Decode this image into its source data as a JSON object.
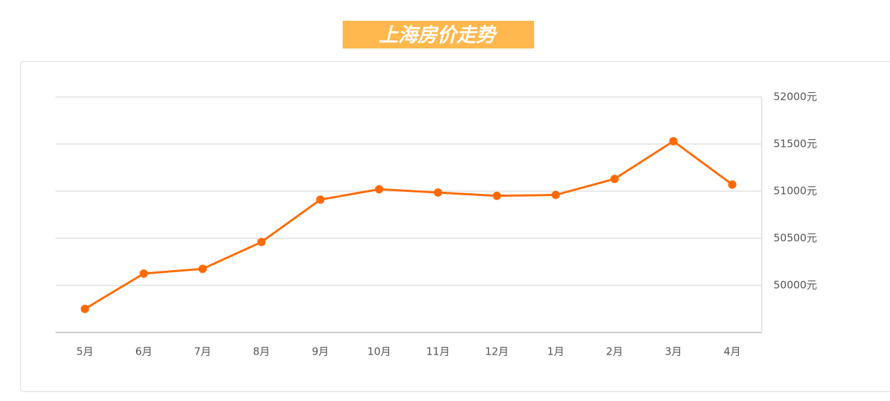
{
  "chart_data": {
    "type": "line",
    "title": "上海房价走势",
    "categories": [
      "5月",
      "6月",
      "7月",
      "8月",
      "9月",
      "10月",
      "11月",
      "12月",
      "1月",
      "2月",
      "3月",
      "4月"
    ],
    "series": [
      {
        "name": "上海房价",
        "color": "#ff6a00",
        "values": [
          49750,
          50125,
          50175,
          50460,
          50910,
          51020,
          50985,
          50950,
          50960,
          51130,
          51530,
          51070
        ]
      }
    ],
    "ylim": [
      49500,
      52000
    ],
    "yticks": [
      {
        "value": 50000,
        "label": "50000元"
      },
      {
        "value": 50500,
        "label": "50500元"
      },
      {
        "value": 51000,
        "label": "51000元"
      },
      {
        "value": 51500,
        "label": "51500元"
      },
      {
        "value": 52000,
        "label": "52000元"
      }
    ],
    "grid": true
  }
}
